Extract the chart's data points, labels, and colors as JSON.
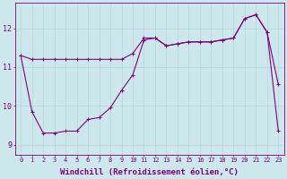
{
  "background_color": "#cce8ed",
  "line_color": "#800080",
  "grid_color": "#b8d8df",
  "xlabel": "Windchill (Refroidissement éolien,°C)",
  "xlabel_fontsize": 6.5,
  "xtick_fontsize": 5.0,
  "ytick_fontsize": 6.0,
  "xlim": [
    -0.5,
    23.5
  ],
  "ylim": [
    8.75,
    12.65
  ],
  "yticks": [
    9,
    10,
    11,
    12
  ],
  "xticks": [
    0,
    1,
    2,
    3,
    4,
    5,
    6,
    7,
    8,
    9,
    10,
    11,
    12,
    13,
    14,
    15,
    16,
    17,
    18,
    19,
    20,
    21,
    22,
    23
  ],
  "series1_x": [
    0,
    1,
    2,
    3,
    4,
    5,
    6,
    7,
    8,
    9,
    10,
    11,
    12,
    13,
    14,
    15,
    16,
    17,
    18,
    19,
    20,
    21,
    22,
    23
  ],
  "series1_y": [
    11.3,
    11.2,
    11.2,
    11.2,
    11.2,
    11.2,
    11.2,
    11.2,
    11.2,
    11.2,
    11.35,
    11.75,
    11.75,
    11.55,
    11.6,
    11.65,
    11.65,
    11.65,
    11.7,
    11.75,
    12.25,
    12.35,
    11.9,
    10.55
  ],
  "series2_x": [
    0,
    1,
    2,
    3,
    4,
    5,
    6,
    7,
    8,
    9,
    10,
    11,
    12,
    13,
    14,
    15,
    16,
    17,
    18,
    19,
    20,
    21,
    22,
    23
  ],
  "series2_y": [
    11.3,
    9.85,
    9.3,
    9.3,
    9.35,
    9.35,
    9.65,
    9.7,
    9.95,
    10.4,
    10.8,
    11.7,
    11.75,
    11.55,
    11.6,
    11.65,
    11.65,
    11.65,
    11.7,
    11.75,
    12.25,
    12.35,
    11.9,
    9.35
  ]
}
